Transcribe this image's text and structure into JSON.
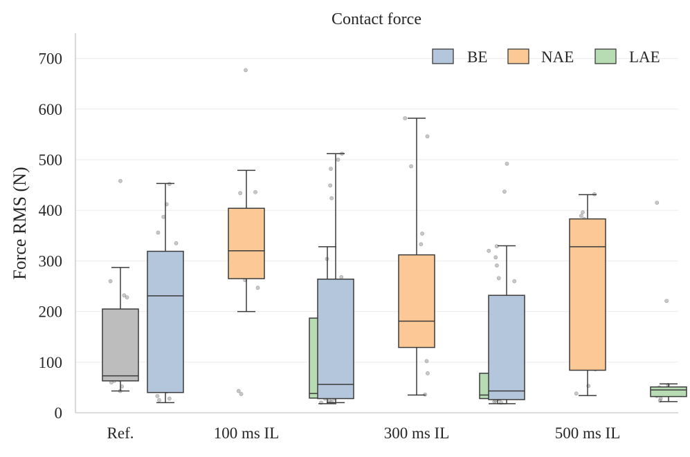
{
  "chart_data": {
    "type": "box",
    "title": "Contact force",
    "xlabel": "",
    "ylabel": "Force RMS (N)",
    "ylim": [
      0,
      750
    ],
    "yticks": [
      0,
      100,
      200,
      300,
      400,
      500,
      600,
      700
    ],
    "grid": true,
    "legend_position": "top-right",
    "groups": [
      "Ref.",
      "100 ms IL",
      "300 ms IL",
      "500 ms IL"
    ],
    "legend": [
      {
        "name": "BE",
        "color": "#b4c6dc"
      },
      {
        "name": "NAE",
        "color": "#fcc996"
      },
      {
        "name": "LAE",
        "color": "#b7dbb2"
      }
    ],
    "ref_color": "#bdbdbd",
    "boxes": [
      {
        "group": "Ref.",
        "series": "",
        "whisker_low": 43,
        "q1": 63,
        "median": 73,
        "q3": 205,
        "whisker_high": 287,
        "points": [
          43,
          52,
          60,
          63,
          65,
          68,
          72,
          125,
          162,
          172,
          196,
          228,
          232,
          260,
          458
        ]
      },
      {
        "group": "100 ms IL",
        "series": "BE",
        "whisker_low": 20,
        "q1": 40,
        "median": 231,
        "q3": 319,
        "whisker_high": 453,
        "points": [
          25,
          28,
          33,
          42,
          172,
          210,
          216,
          218,
          246,
          288,
          293,
          335,
          356,
          387,
          412,
          452
        ]
      },
      {
        "group": "100 ms IL",
        "series": "NAE",
        "whisker_low": 200,
        "q1": 265,
        "median": 320,
        "q3": 404,
        "whisker_high": 479,
        "points": [
          37,
          43,
          247,
          262,
          287,
          300,
          312,
          318,
          322,
          326,
          330,
          366,
          395,
          434,
          436,
          677
        ]
      },
      {
        "group": "100 ms IL",
        "series": "LAE",
        "whisker_low": 18,
        "q1": 29,
        "median": 38,
        "q3": 187,
        "whisker_high": 328,
        "points": [
          20,
          24,
          28,
          31,
          35,
          40,
          43,
          48,
          54,
          180,
          205,
          424,
          482,
          500
        ]
      },
      {
        "group": "300 ms IL",
        "series": "BE",
        "whisker_low": 20,
        "q1": 28,
        "median": 56,
        "q3": 264,
        "whisker_high": 512,
        "points": [
          22,
          28,
          30,
          46,
          50,
          60,
          172,
          227,
          248,
          268,
          304,
          449,
          512
        ]
      },
      {
        "group": "300 ms IL",
        "series": "NAE",
        "whisker_low": 35,
        "q1": 129,
        "median": 181,
        "q3": 312,
        "whisker_high": 582,
        "points": [
          36,
          78,
          102,
          137,
          141,
          149,
          157,
          177,
          208,
          226,
          288,
          300,
          333,
          354,
          487,
          546,
          582
        ]
      },
      {
        "group": "300 ms IL",
        "series": "LAE",
        "whisker_low": 18,
        "q1": 28,
        "median": 35,
        "q3": 78,
        "whisker_high": 78,
        "points": [
          22,
          27,
          31,
          35,
          38,
          44,
          47,
          171,
          291,
          320,
          437,
          492
        ]
      },
      {
        "group": "500 ms IL",
        "series": "BE",
        "whisker_low": 18,
        "q1": 26,
        "median": 43,
        "q3": 232,
        "whisker_high": 330,
        "points": [
          20,
          24,
          28,
          32,
          40,
          46,
          197,
          223,
          260,
          266,
          307,
          329
        ]
      },
      {
        "group": "500 ms IL",
        "series": "NAE",
        "whisker_low": 34,
        "q1": 84,
        "median": 328,
        "q3": 383,
        "whisker_high": 431,
        "points": [
          38,
          53,
          86,
          227,
          292,
          298,
          342,
          346,
          356,
          362,
          383,
          389,
          396,
          432
        ]
      },
      {
        "group": "500 ms IL",
        "series": "LAE",
        "whisker_low": 22,
        "q1": 32,
        "median": 45,
        "q3": 51,
        "whisker_high": 57,
        "points": [
          24,
          28,
          33,
          37,
          42,
          46,
          50,
          55,
          221,
          415
        ]
      }
    ]
  }
}
